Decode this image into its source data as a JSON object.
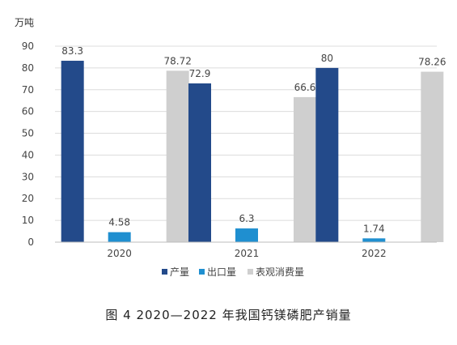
{
  "figure": {
    "caption": "图 4  2020—2022 年我国钙镁磷肥产销量"
  },
  "chart_data": {
    "type": "bar",
    "unit_label": "万吨",
    "categories": [
      "2020",
      "2021",
      "2022"
    ],
    "series": [
      {
        "name": "产量",
        "values": [
          83.3,
          72.9,
          80
        ],
        "labels": [
          "83.3",
          "72.9",
          "80"
        ],
        "color": "#234a8a"
      },
      {
        "name": "出口量",
        "values": [
          4.58,
          6.3,
          1.74
        ],
        "labels": [
          "4.58",
          "6.3",
          "1.74"
        ],
        "color": "#1f8fd0"
      },
      {
        "name": "表观消费量",
        "values": [
          78.72,
          66.6,
          78.26
        ],
        "labels": [
          "78.72",
          "66.6",
          "78.26"
        ],
        "color": "#cfcfcf"
      }
    ],
    "ylim": [
      0,
      90
    ],
    "yticks": [
      "0",
      "10",
      "20",
      "30",
      "40",
      "50",
      "60",
      "70",
      "80",
      "90"
    ],
    "grid": true,
    "legend_position": "bottom"
  }
}
